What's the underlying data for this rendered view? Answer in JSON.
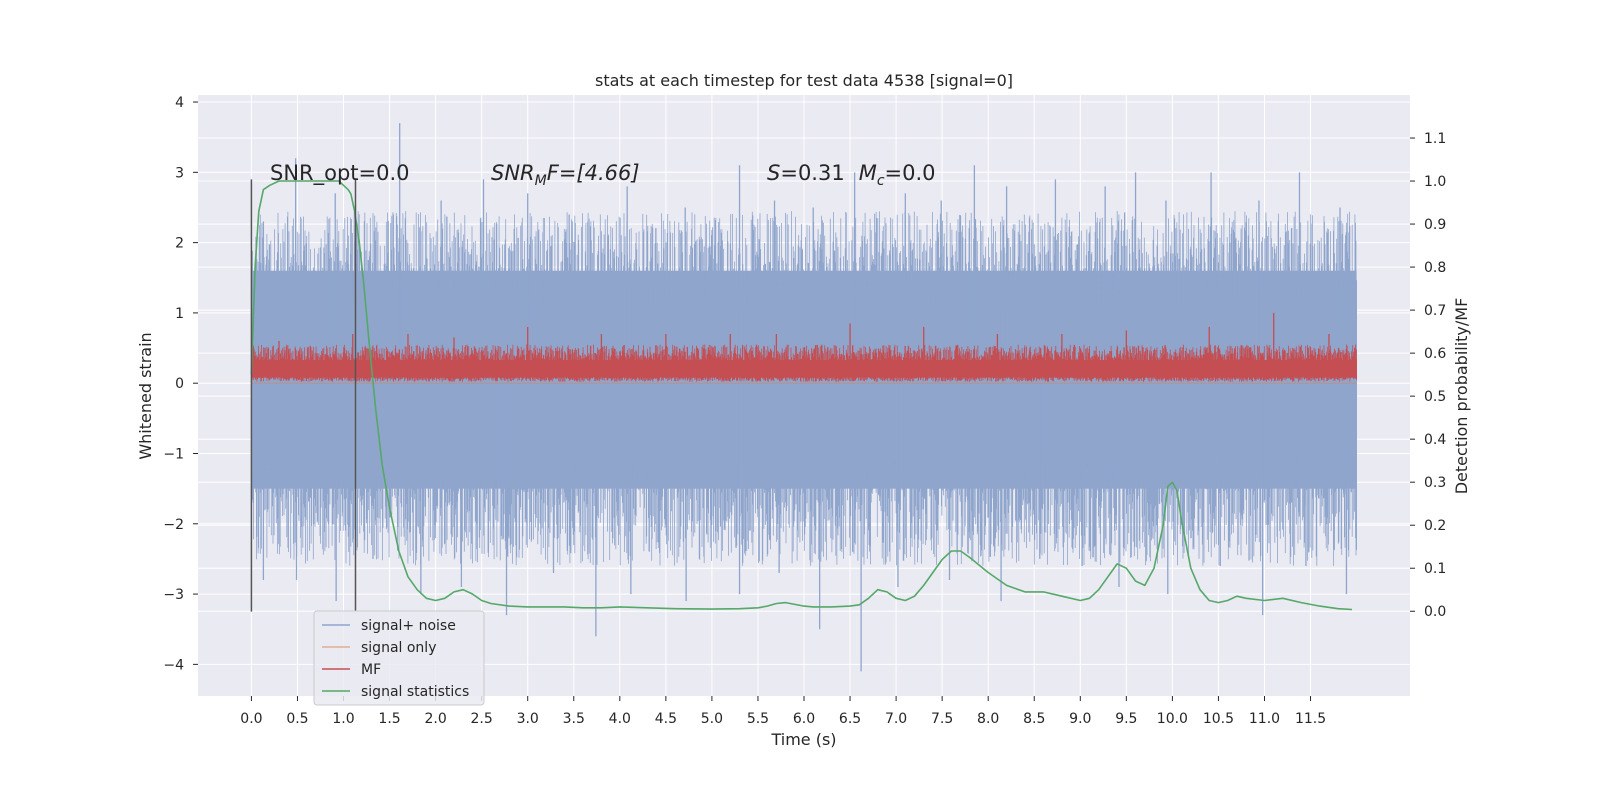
{
  "chart_data": {
    "type": "line",
    "title": "stats at each timestep for test data 4538 [signal=0]",
    "xlabel": "Time (s)",
    "ylabel": "Whitened strain",
    "y2label": "Detection probability/MF",
    "xlim": [
      -0.58,
      12.58
    ],
    "ylim": [
      -4.45,
      4.1
    ],
    "y2lim": [
      -0.197,
      1.2
    ],
    "xticks": [
      "0.0",
      "0.5",
      "1.0",
      "1.5",
      "2.0",
      "2.5",
      "3.0",
      "3.5",
      "4.0",
      "4.5",
      "5.0",
      "5.5",
      "6.0",
      "6.5",
      "7.0",
      "7.5",
      "8.0",
      "8.5",
      "9.0",
      "9.5",
      "10.0",
      "10.5",
      "11.0",
      "11.5"
    ],
    "yticks": [
      "4",
      "3",
      "2",
      "1",
      "0",
      "−1",
      "−2",
      "−3",
      "−4"
    ],
    "y2ticks": [
      "1.1",
      "1.0",
      "0.9",
      "0.8",
      "0.7",
      "0.6",
      "0.5",
      "0.4",
      "0.3",
      "0.2",
      "0.1",
      "0.0"
    ],
    "grid": true,
    "legend_position": "lower-left",
    "colors": {
      "background": "#eaeaf2",
      "grid": "#ffffff",
      "noise": "#8fa5cc",
      "signal_only": "#dd8452",
      "mf": "#c44e52",
      "stat": "#55a868",
      "marker": "#555555"
    },
    "annotations": {
      "snr_opt": "SNR_opt=0.0",
      "snr_mf_base": "SNR",
      "snr_mf_sub": "M",
      "snr_mf_rest": "F=[4.66]",
      "s_var": "S",
      "s_val": "=0.31",
      "mc_var": "M",
      "mc_sub": "c",
      "mc_val": "=0.0"
    },
    "markers_x": [
      0.0,
      1.13
    ],
    "series": [
      {
        "name": "signal+ noise",
        "axis": "left",
        "style": "noise-band",
        "x_range": [
          0.0,
          12.0
        ],
        "dense_band": [
          -1.5,
          1.6
        ],
        "peaks_x": [
          0.13,
          0.48,
          0.91,
          1.05,
          1.61,
          2.06,
          2.52,
          3.0,
          3.45,
          4.08,
          4.71,
          5.3,
          5.68,
          6.1,
          6.55,
          7.1,
          7.49,
          7.85,
          8.2,
          8.73,
          9.27,
          9.6,
          9.93,
          10.42,
          10.94,
          11.38,
          11.82
        ],
        "peaks_y": [
          2.3,
          3.2,
          2.7,
          2.1,
          3.7,
          2.6,
          2.9,
          2.7,
          2.4,
          2.8,
          2.5,
          3.1,
          2.6,
          2.5,
          3.0,
          2.7,
          2.6,
          3.1,
          2.8,
          2.9,
          2.8,
          3.0,
          2.6,
          3.0,
          2.6,
          3.0,
          2.5
        ],
        "troughs_x": [
          0.13,
          0.49,
          0.92,
          1.32,
          1.84,
          2.28,
          2.77,
          3.28,
          3.74,
          4.12,
          4.72,
          5.3,
          5.73,
          6.17,
          6.62,
          7.02,
          7.58,
          8.14,
          8.56,
          9.02,
          9.42,
          9.95,
          10.52,
          10.98,
          11.45,
          11.89
        ],
        "troughs_y": [
          -2.8,
          -2.8,
          -3.1,
          -2.5,
          -3.0,
          -2.9,
          -3.3,
          -2.7,
          -3.6,
          -3.0,
          -3.1,
          -3.0,
          -2.7,
          -3.5,
          -4.1,
          -2.9,
          -2.8,
          -3.1,
          -2.5,
          -2.6,
          -2.9,
          -3.0,
          -2.6,
          -3.3,
          -2.6,
          -3.0
        ]
      },
      {
        "name": "signal only",
        "axis": "left",
        "x": [
          0.0,
          12.0
        ],
        "y": [
          0.0,
          0.0
        ]
      },
      {
        "name": "MF",
        "axis": "left",
        "style": "mf-band",
        "x_range": [
          0.0,
          12.0
        ],
        "band": [
          0.0,
          0.45
        ],
        "peaks_x": [
          0.3,
          1.1,
          1.7,
          2.2,
          3.0,
          3.8,
          4.5,
          5.2,
          5.7,
          6.5,
          7.3,
          8.1,
          8.8,
          9.5,
          10.4,
          11.1,
          11.7
        ],
        "peaks_y": [
          0.6,
          0.7,
          0.7,
          0.65,
          0.8,
          0.7,
          0.7,
          0.7,
          0.7,
          0.85,
          0.8,
          0.7,
          0.7,
          0.75,
          0.8,
          1.0,
          0.7
        ]
      },
      {
        "name": "signal statistics",
        "axis": "right",
        "x": [
          0.0,
          0.04,
          0.08,
          0.13,
          0.2,
          0.3,
          0.4,
          0.5,
          0.6,
          0.7,
          0.8,
          0.9,
          0.95,
          1.0,
          1.05,
          1.08,
          1.12,
          1.17,
          1.22,
          1.28,
          1.35,
          1.42,
          1.5,
          1.6,
          1.7,
          1.8,
          1.9,
          2.0,
          2.1,
          2.2,
          2.3,
          2.4,
          2.5,
          2.6,
          2.8,
          3.0,
          3.2,
          3.4,
          3.6,
          3.8,
          4.0,
          4.3,
          4.6,
          5.0,
          5.3,
          5.5,
          5.6,
          5.7,
          5.8,
          5.9,
          6.0,
          6.1,
          6.3,
          6.5,
          6.6,
          6.7,
          6.8,
          6.9,
          7.0,
          7.1,
          7.2,
          7.3,
          7.4,
          7.5,
          7.6,
          7.7,
          7.8,
          8.0,
          8.2,
          8.4,
          8.6,
          8.8,
          9.0,
          9.1,
          9.2,
          9.3,
          9.4,
          9.5,
          9.6,
          9.7,
          9.8,
          9.9,
          9.95,
          10.0,
          10.05,
          10.1,
          10.2,
          10.3,
          10.4,
          10.5,
          10.6,
          10.7,
          10.8,
          11.0,
          11.2,
          11.4,
          11.6,
          11.8,
          11.95
        ],
        "y": [
          0.55,
          0.8,
          0.93,
          0.98,
          0.99,
          1.0,
          1.0,
          1.0,
          1.0,
          1.0,
          1.0,
          1.0,
          1.0,
          0.99,
          0.98,
          0.97,
          0.93,
          0.86,
          0.76,
          0.62,
          0.47,
          0.34,
          0.24,
          0.14,
          0.08,
          0.05,
          0.03,
          0.025,
          0.03,
          0.045,
          0.05,
          0.04,
          0.025,
          0.018,
          0.012,
          0.01,
          0.01,
          0.01,
          0.008,
          0.008,
          0.01,
          0.008,
          0.006,
          0.005,
          0.006,
          0.008,
          0.012,
          0.018,
          0.02,
          0.016,
          0.012,
          0.01,
          0.01,
          0.012,
          0.015,
          0.03,
          0.05,
          0.045,
          0.03,
          0.025,
          0.035,
          0.06,
          0.09,
          0.12,
          0.14,
          0.14,
          0.125,
          0.09,
          0.06,
          0.045,
          0.045,
          0.035,
          0.025,
          0.03,
          0.05,
          0.08,
          0.11,
          0.1,
          0.07,
          0.06,
          0.1,
          0.2,
          0.29,
          0.3,
          0.28,
          0.21,
          0.1,
          0.05,
          0.025,
          0.02,
          0.025,
          0.035,
          0.03,
          0.025,
          0.03,
          0.02,
          0.012,
          0.006,
          0.004
        ]
      }
    ]
  }
}
